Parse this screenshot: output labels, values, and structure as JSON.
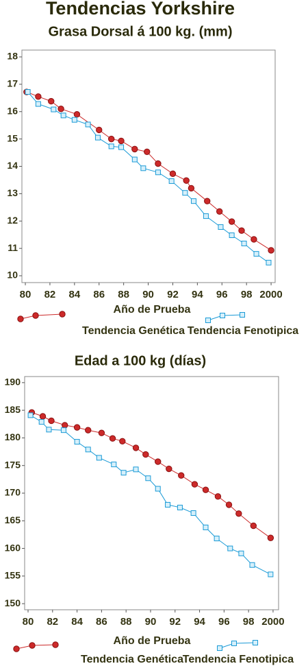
{
  "title": "Tendencias Yorkshire",
  "chart_data": [
    {
      "type": "line",
      "title": "Grasa Dorsal á 100 kg. (mm)",
      "x_label": "Año de Prueba",
      "xlim": [
        79.72,
        100.33
      ],
      "ylim": [
        9.75,
        18.25
      ],
      "xticks": [
        80,
        82,
        84,
        86,
        88,
        90,
        92,
        94,
        96,
        98,
        {
          "value": 100,
          "label": "2000"
        }
      ],
      "yticks": [
        10,
        11,
        12,
        13,
        14,
        15,
        16,
        17,
        18
      ],
      "series": [
        {
          "name": "Tendencia Genética",
          "color": "#cc2a2a",
          "marker": "circle",
          "x": [
            80.1,
            81.05,
            82.1,
            82.9,
            84.2,
            86.0,
            87.0,
            87.8,
            88.9,
            89.9,
            90.8,
            92.0,
            93.1,
            93.5,
            94.8,
            95.8,
            96.8,
            97.6,
            98.6,
            100.0
          ],
          "values": [
            16.72,
            16.55,
            16.38,
            16.1,
            15.9,
            15.33,
            15.0,
            14.93,
            14.63,
            14.53,
            14.1,
            13.73,
            13.48,
            13.2,
            12.73,
            12.35,
            11.98,
            11.65,
            11.33,
            10.93
          ]
        },
        {
          "name": "Tendencia Fenotipica",
          "color": "#1a9ad6",
          "marker": "square",
          "x": [
            80.2,
            81.05,
            82.3,
            83.1,
            84.0,
            85.1,
            85.9,
            87.0,
            87.8,
            88.9,
            89.6,
            90.8,
            91.9,
            93.0,
            93.7,
            94.7,
            95.9,
            96.8,
            97.8,
            98.8,
            99.8
          ],
          "values": [
            16.72,
            16.28,
            16.08,
            15.86,
            15.7,
            15.53,
            15.05,
            14.73,
            14.7,
            14.25,
            13.93,
            13.78,
            13.46,
            13.03,
            12.73,
            12.18,
            11.78,
            11.48,
            11.18,
            10.8,
            10.48
          ]
        }
      ]
    },
    {
      "type": "line",
      "title": "Edad a 100 kg (días)",
      "x_label": "Año de Prueba",
      "xlim": [
        79.72,
        100.45
      ],
      "ylim": [
        148.9,
        191.1
      ],
      "xticks": [
        80,
        82,
        84,
        86,
        88,
        90,
        92,
        94,
        96,
        98,
        {
          "value": 100,
          "label": "2000"
        }
      ],
      "yticks": [
        150,
        155,
        160,
        165,
        170,
        175,
        180,
        185,
        190
      ],
      "series": [
        {
          "name": "Tendencia Genética",
          "color": "#cc2a2a",
          "marker": "circle",
          "x": [
            80.3,
            81.2,
            81.9,
            83.0,
            84.0,
            84.9,
            86.0,
            86.9,
            87.7,
            88.8,
            89.6,
            90.6,
            91.5,
            92.5,
            93.6,
            94.5,
            95.5,
            96.4,
            97.2,
            98.4,
            99.8
          ],
          "values": [
            184.6,
            183.9,
            183.1,
            182.3,
            181.9,
            181.4,
            180.9,
            179.9,
            179.4,
            178.2,
            177.0,
            175.7,
            174.4,
            173.2,
            171.6,
            170.6,
            169.4,
            167.9,
            166.3,
            164.1,
            161.9
          ]
        },
        {
          "name": "Tendencia Fenotipica",
          "color": "#1a9ad6",
          "marker": "square",
          "x": [
            80.2,
            81.1,
            81.7,
            82.9,
            84.0,
            84.9,
            85.8,
            87.0,
            87.8,
            88.8,
            89.8,
            90.6,
            91.4,
            92.4,
            93.5,
            94.5,
            95.4,
            96.5,
            97.4,
            98.3,
            99.8
          ],
          "values": [
            184.1,
            182.9,
            181.5,
            181.4,
            179.3,
            177.9,
            176.4,
            175.2,
            173.7,
            174.3,
            172.7,
            170.8,
            167.9,
            167.4,
            166.4,
            163.8,
            161.8,
            160.0,
            159.1,
            157.0,
            155.3
          ]
        }
      ]
    }
  ]
}
